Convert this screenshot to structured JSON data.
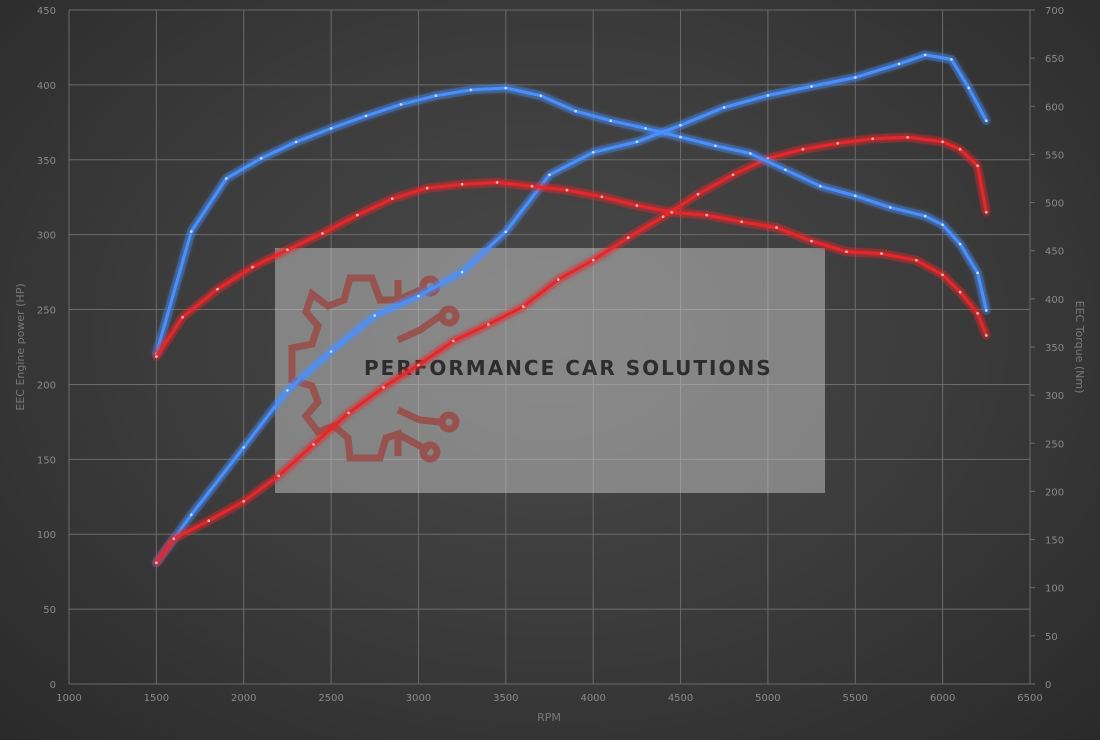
{
  "chart_data": {
    "type": "line",
    "xlabel": "RPM",
    "ylabel": "EEC Engine power (HP)",
    "y2label": "EEC Torque (Nm)",
    "xlim": [
      1000,
      6500
    ],
    "ylim": [
      0,
      450
    ],
    "y2lim": [
      0,
      700
    ],
    "x_ticks": [
      1000,
      1500,
      2000,
      2500,
      3000,
      3500,
      4000,
      4500,
      5000,
      5500,
      6000,
      6500
    ],
    "y_ticks": [
      0,
      50,
      100,
      150,
      200,
      250,
      300,
      350,
      400,
      450
    ],
    "y2_ticks": [
      0,
      50,
      100,
      150,
      200,
      250,
      300,
      350,
      400,
      450,
      500,
      550,
      600,
      650,
      700
    ],
    "grid": true,
    "legend": "none",
    "series": [
      {
        "axis": "left",
        "color": "#4a90ff",
        "x": [
          1500,
          1700,
          2000,
          2250,
          2500,
          2750,
          3000,
          3250,
          3500,
          3750,
          4000,
          4250,
          4500,
          4750,
          5000,
          5250,
          5500,
          5750,
          5900,
          6050,
          6150,
          6250
        ],
        "values": [
          81,
          113,
          158,
          196,
          222,
          246,
          259,
          275,
          302,
          340,
          355,
          362,
          373,
          385,
          393,
          399,
          405,
          414,
          420,
          417,
          398,
          376
        ]
      },
      {
        "axis": "left",
        "color": "#e8282a",
        "x": [
          1500,
          1600,
          1800,
          2000,
          2200,
          2400,
          2600,
          2800,
          3000,
          3200,
          3400,
          3600,
          3800,
          4000,
          4200,
          4400,
          4600,
          4800,
          5000,
          5200,
          5400,
          5600,
          5800,
          6000,
          6100,
          6200,
          6250
        ],
        "values": [
          81,
          97,
          109,
          122,
          139,
          160,
          181,
          198,
          213,
          229,
          240,
          252,
          270,
          283,
          298,
          312,
          327,
          340,
          351,
          357,
          361,
          364,
          365,
          362,
          357,
          346,
          315
        ]
      },
      {
        "axis": "right",
        "color": "#4a90ff",
        "x": [
          1500,
          1700,
          1900,
          2100,
          2300,
          2500,
          2700,
          2900,
          3100,
          3300,
          3500,
          3700,
          3900,
          4100,
          4300,
          4500,
          4700,
          4900,
          5100,
          5300,
          5500,
          5700,
          5900,
          6000,
          6100,
          6200,
          6250
        ],
        "values": [
          343,
          470,
          525,
          546,
          563,
          577,
          590,
          602,
          611,
          617,
          619,
          611,
          595,
          585,
          577,
          568,
          559,
          551,
          534,
          517,
          507,
          495,
          486,
          477,
          457,
          427,
          388
        ]
      },
      {
        "axis": "right",
        "color": "#e8282a",
        "x": [
          1500,
          1650,
          1850,
          2050,
          2250,
          2450,
          2650,
          2850,
          3050,
          3250,
          3450,
          3650,
          3850,
          4050,
          4250,
          4450,
          4650,
          4850,
          5050,
          5250,
          5450,
          5650,
          5850,
          6000,
          6100,
          6200,
          6250
        ],
        "values": [
          340,
          381,
          410,
          433,
          451,
          468,
          487,
          504,
          515,
          519,
          521,
          517,
          513,
          506,
          497,
          490,
          487,
          480,
          474,
          460,
          449,
          447,
          440,
          425,
          407,
          385,
          362
        ]
      }
    ],
    "watermark": {
      "text": "PERFORMANCE CAR SOLUTIONS"
    }
  }
}
